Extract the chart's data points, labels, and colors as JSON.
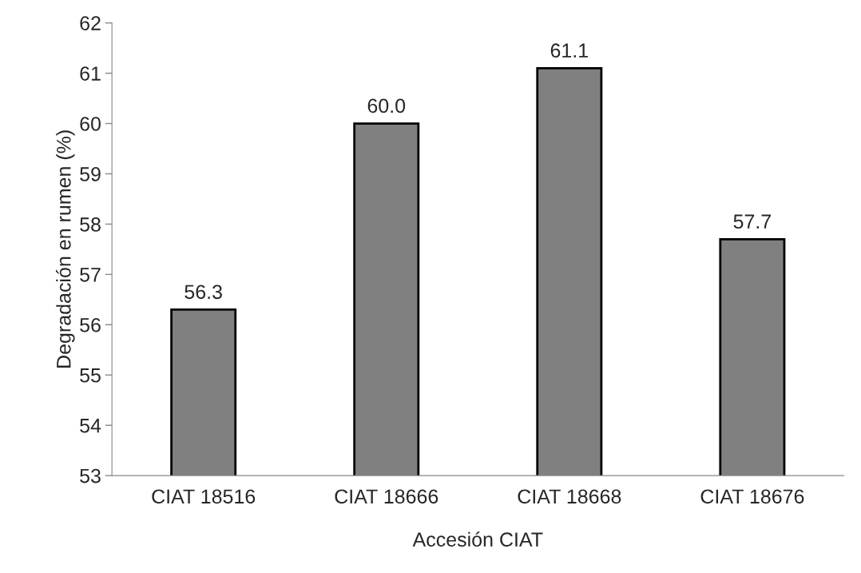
{
  "chart_data": {
    "type": "bar",
    "xlabel": "Accesión CIAT",
    "ylabel": "Degradación en rumen (%)",
    "categories": [
      "CIAT 18516",
      "CIAT 18666",
      "CIAT 18668",
      "CIAT 18676"
    ],
    "values": [
      56.3,
      60.0,
      61.1,
      57.7
    ],
    "value_labels": [
      "56.3",
      "60.0",
      "61.1",
      "57.7"
    ],
    "color": "#808080",
    "ylim": [
      53,
      62
    ],
    "yticks": [
      53,
      54,
      55,
      56,
      57,
      58,
      59,
      60,
      61,
      62
    ],
    "grid": false
  }
}
